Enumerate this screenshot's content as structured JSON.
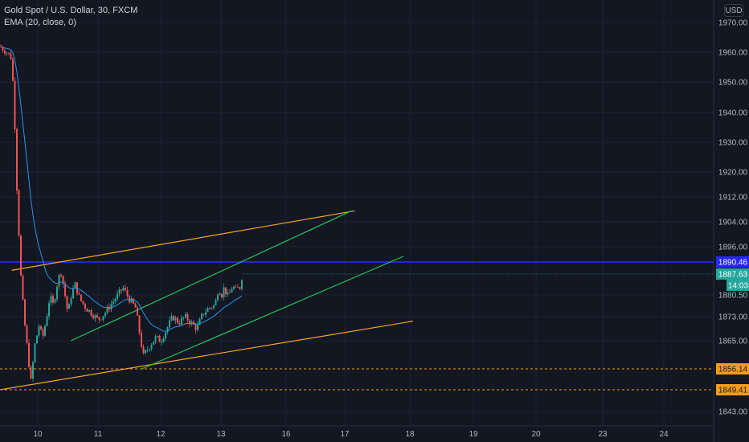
{
  "legend": {
    "symbol": "Gold Spot / U.S. Dollar, 30, FXCM",
    "indicator": "EMA (20, close, 0)"
  },
  "currency_button": "USD",
  "colors": {
    "background": "#131722",
    "grid": "#1e222d",
    "axis_text": "#b2b5be",
    "up_candle": "#26a69a",
    "down_candle": "#ef5350",
    "ema": "#2196f3",
    "channel": "#22c55e",
    "wedge": "#f5a623",
    "resistance": "#2626ff",
    "price_label_blue": "#2626ff",
    "price_label_teal": "#26a69a",
    "price_label_orange": "#f59c1a"
  },
  "chart_data": {
    "type": "candlestick",
    "symbol": "Gold Spot / U.S. Dollar",
    "timeframe": "30",
    "source": "FXCM",
    "indicator": "EMA (20, close, 0)",
    "ylim": [
      1840,
      1974
    ],
    "y_ticks": [
      1843.0,
      1849.41,
      1856.14,
      1865.0,
      1873.0,
      1880.5,
      1887.63,
      1890.46,
      1896.0,
      1904.0,
      1912.0,
      1920.0,
      1930.0,
      1940.0,
      1950.0,
      1960.0,
      1970.0
    ],
    "y_tick_labels": [
      "1843.00",
      "1849.41",
      "1856.14",
      "1865.00",
      "1873.00",
      "1880.50",
      "1887.63",
      "1890.46",
      "1896.00",
      "1904.00",
      "1912.00",
      "1920.00",
      "1930.00",
      "1940.00",
      "1950.00",
      "1960.00",
      "1970.00"
    ],
    "x_ticks": [
      10,
      11,
      12,
      13,
      16,
      17,
      18,
      19,
      20,
      23,
      24
    ],
    "x_tick_labels": [
      "10",
      "11",
      "12",
      "13",
      "16",
      "17",
      "18",
      "19",
      "20",
      "23",
      "24"
    ],
    "xlim": [
      9.45,
      24.6
    ],
    "price_path": [
      [
        9.45,
        1962
      ],
      [
        9.55,
        1960
      ],
      [
        9.62,
        1958
      ],
      [
        9.66,
        1940
      ],
      [
        9.7,
        1912
      ],
      [
        9.76,
        1884
      ],
      [
        9.82,
        1868
      ],
      [
        9.86,
        1860
      ],
      [
        9.9,
        1852
      ],
      [
        9.96,
        1864
      ],
      [
        10.02,
        1870
      ],
      [
        10.08,
        1866
      ],
      [
        10.14,
        1872
      ],
      [
        10.2,
        1880
      ],
      [
        10.26,
        1877
      ],
      [
        10.32,
        1884
      ],
      [
        10.38,
        1889
      ],
      [
        10.44,
        1882
      ],
      [
        10.5,
        1874
      ],
      [
        10.56,
        1881
      ],
      [
        10.62,
        1884
      ],
      [
        10.7,
        1879
      ],
      [
        10.8,
        1876
      ],
      [
        10.9,
        1874
      ],
      [
        11.0,
        1872
      ],
      [
        11.1,
        1874
      ],
      [
        11.2,
        1877
      ],
      [
        11.3,
        1880
      ],
      [
        11.4,
        1883
      ],
      [
        11.5,
        1879
      ],
      [
        11.6,
        1876
      ],
      [
        11.66,
        1868
      ],
      [
        11.72,
        1860
      ],
      [
        11.78,
        1862
      ],
      [
        11.84,
        1864
      ],
      [
        11.92,
        1866
      ],
      [
        12.0,
        1865
      ],
      [
        12.1,
        1869
      ],
      [
        12.2,
        1873
      ],
      [
        12.3,
        1871
      ],
      [
        12.4,
        1873
      ],
      [
        12.5,
        1871
      ],
      [
        12.6,
        1869
      ],
      [
        12.7,
        1874
      ],
      [
        12.8,
        1876
      ],
      [
        12.9,
        1877
      ],
      [
        12.96,
        1883
      ],
      [
        13.02,
        1880
      ],
      [
        13.1,
        1883
      ],
      [
        13.2,
        1882
      ],
      [
        13.3,
        1880
      ],
      [
        13.4,
        1881
      ],
      [
        13.5,
        1883
      ],
      [
        13.6,
        1883
      ],
      [
        13.68,
        1882
      ],
      [
        13.74,
        1884
      ],
      [
        13.8,
        1882
      ],
      [
        13.86,
        1883
      ],
      [
        13.92,
        1884
      ],
      [
        13.98,
        1887.63
      ]
    ],
    "last_price": 1887.63,
    "countdown": "14:03",
    "drawings": [
      {
        "type": "horizontal_line",
        "price": 1890.46,
        "label": "1890.46",
        "color": "#2626ff"
      },
      {
        "type": "trendline",
        "name": "wedge upper",
        "from": [
          9.62,
          1888.5
        ],
        "to": [
          17.15,
          1907.5
        ],
        "color": "#f5a623"
      },
      {
        "type": "trendline",
        "name": "wedge lower",
        "from": [
          9.45,
          1849.41
        ],
        "to": [
          18.05,
          1871.5
        ],
        "color": "#f5a623"
      },
      {
        "type": "trendline",
        "name": "channel upper",
        "from": [
          10.55,
          1865
        ],
        "to": [
          17.1,
          1907.5
        ],
        "color": "#22c55e"
      },
      {
        "type": "trendline",
        "name": "channel lower",
        "from": [
          11.7,
          1856.14
        ],
        "to": [
          17.9,
          1892.5
        ],
        "color": "#22c55e"
      },
      {
        "type": "horizontal_dashed",
        "price": 1856.14,
        "label": "1856.14",
        "color": "#f59c1a"
      },
      {
        "type": "horizontal_dashed",
        "price": 1849.41,
        "label": "1849.41",
        "color": "#f59c1a"
      }
    ]
  }
}
